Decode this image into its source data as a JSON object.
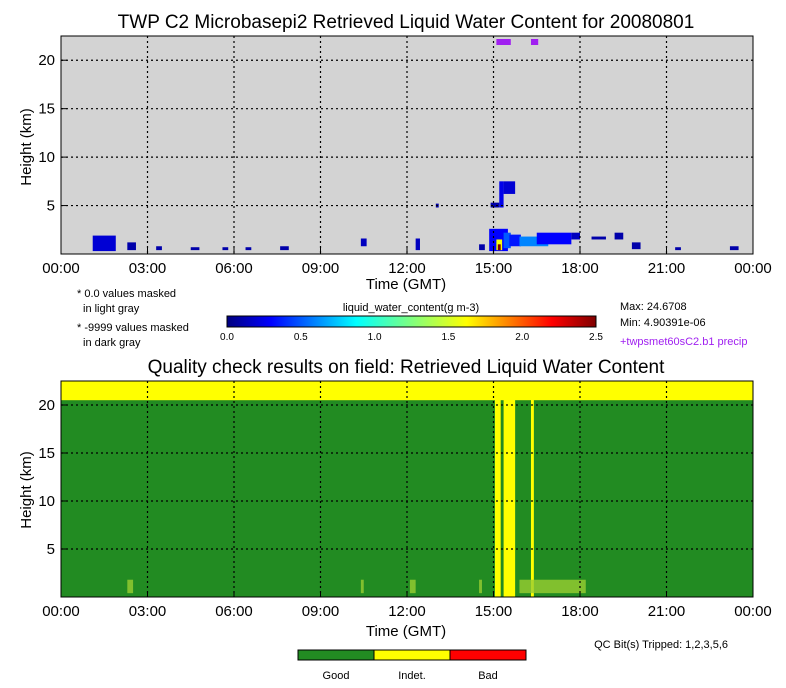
{
  "chart_data": [
    {
      "type": "heatmap",
      "title": "TWP C2 Microbasepi2 Retrieved Liquid Water Content for 20080801",
      "xlabel": "Time (GMT)",
      "ylabel": "Height (km)",
      "xticks": [
        "00:00",
        "03:00",
        "06:00",
        "09:00",
        "12:00",
        "15:00",
        "18:00",
        "21:00",
        "00:00"
      ],
      "xlim_hours": [
        0,
        24
      ],
      "yticks": [
        5,
        10,
        15,
        20
      ],
      "ylim": [
        0,
        22.5
      ],
      "grid": true,
      "background_color": "#d3d3d3",
      "notes": [
        "* 0.0 values masked",
        "in light gray",
        "* -9999 values masked",
        "in dark gray"
      ],
      "colorbar": {
        "label": "liquid_water_content(g m-3)",
        "ticks": [
          "0.0",
          "0.5",
          "1.0",
          "1.5",
          "2.0",
          "2.5"
        ],
        "range": [
          0,
          2.5
        ]
      },
      "stats": {
        "max": "Max: 24.6708",
        "min": "Min: 4.90391e-06"
      },
      "precip_label": "+twpsmet60sC2.b1 precip",
      "precip_color": "#a020f0",
      "precip_periods_hours": [
        [
          15.1,
          15.6
        ],
        [
          16.3,
          16.55
        ]
      ],
      "cloud_features": [
        {
          "t0": 1.1,
          "t1": 1.9,
          "z0": 0.3,
          "z1": 1.9,
          "level": 0.2
        },
        {
          "t0": 2.3,
          "t1": 2.6,
          "z0": 0.4,
          "z1": 1.2,
          "level": 0.1
        },
        {
          "t0": 3.3,
          "t1": 3.5,
          "z0": 0.4,
          "z1": 0.8,
          "level": 0.1
        },
        {
          "t0": 4.5,
          "t1": 4.8,
          "z0": 0.4,
          "z1": 0.7,
          "level": 0.1
        },
        {
          "t0": 5.6,
          "t1": 5.8,
          "z0": 0.4,
          "z1": 0.7,
          "level": 0.1
        },
        {
          "t0": 6.4,
          "t1": 6.6,
          "z0": 0.4,
          "z1": 0.7,
          "level": 0.1
        },
        {
          "t0": 7.6,
          "t1": 7.9,
          "z0": 0.4,
          "z1": 0.8,
          "level": 0.1
        },
        {
          "t0": 10.4,
          "t1": 10.6,
          "z0": 0.8,
          "z1": 1.6,
          "level": 0.15
        },
        {
          "t0": 12.3,
          "t1": 12.45,
          "z0": 0.4,
          "z1": 1.6,
          "level": 0.15
        },
        {
          "t0": 13.0,
          "t1": 13.1,
          "z0": 4.8,
          "z1": 5.2,
          "level": 0.1
        },
        {
          "t0": 14.5,
          "t1": 14.7,
          "z0": 0.4,
          "z1": 1.0,
          "level": 0.1
        },
        {
          "t0": 14.85,
          "t1": 15.5,
          "z0": 0.3,
          "z1": 2.6,
          "level": 0.3
        },
        {
          "t0": 15.1,
          "t1": 15.3,
          "z0": 0.4,
          "z1": 1.5,
          "level": 1.6
        },
        {
          "t0": 15.15,
          "t1": 15.25,
          "z0": 0.4,
          "z1": 1.0,
          "level": 2.5
        },
        {
          "t0": 15.35,
          "t1": 15.6,
          "z0": 0.6,
          "z1": 2.2,
          "level": 0.5
        },
        {
          "t0": 15.55,
          "t1": 15.95,
          "z0": 0.8,
          "z1": 2.0,
          "level": 0.35
        },
        {
          "t0": 15.9,
          "t1": 16.9,
          "z0": 0.8,
          "z1": 1.8,
          "level": 0.6
        },
        {
          "t0": 16.5,
          "t1": 17.7,
          "z0": 1.0,
          "z1": 2.2,
          "level": 0.3
        },
        {
          "t0": 17.7,
          "t1": 18.0,
          "z0": 1.5,
          "z1": 2.2,
          "level": 0.15
        },
        {
          "t0": 15.2,
          "t1": 15.35,
          "z0": 4.8,
          "z1": 7.5,
          "level": 0.25
        },
        {
          "t0": 15.35,
          "t1": 15.75,
          "z0": 6.2,
          "z1": 7.5,
          "level": 0.2
        },
        {
          "t0": 14.9,
          "t1": 15.2,
          "z0": 4.8,
          "z1": 5.3,
          "level": 0.1
        },
        {
          "t0": 18.4,
          "t1": 18.9,
          "z0": 1.5,
          "z1": 1.8,
          "level": 0.1
        },
        {
          "t0": 19.2,
          "t1": 19.5,
          "z0": 1.5,
          "z1": 2.2,
          "level": 0.1
        },
        {
          "t0": 19.8,
          "t1": 20.1,
          "z0": 0.5,
          "z1": 1.2,
          "level": 0.1
        },
        {
          "t0": 21.3,
          "t1": 21.5,
          "z0": 0.4,
          "z1": 0.7,
          "level": 0.1
        },
        {
          "t0": 23.2,
          "t1": 23.5,
          "z0": 0.4,
          "z1": 0.8,
          "level": 0.1
        }
      ]
    },
    {
      "type": "heatmap",
      "title": "Quality check results on field: Retrieved Liquid Water Content",
      "xlabel": "Time (GMT)",
      "ylabel": "Height (km)",
      "xticks": [
        "00:00",
        "03:00",
        "06:00",
        "09:00",
        "12:00",
        "15:00",
        "18:00",
        "21:00",
        "00:00"
      ],
      "xlim_hours": [
        0,
        24
      ],
      "yticks": [
        5,
        10,
        15,
        20
      ],
      "ylim": [
        0,
        22.5
      ],
      "grid": true,
      "qc_bits": "QC Bit(s) Tripped: 1,2,3,5,6",
      "legend": [
        {
          "label": "Good",
          "color": "#228b22"
        },
        {
          "label": "Indet.",
          "color": "#ffff00"
        },
        {
          "label": "Bad",
          "color": "#ff0000"
        }
      ],
      "indeterminate_top_km": [
        20.5,
        22.5
      ],
      "indeterminate_columns_hours": [
        [
          15.05,
          15.25
        ],
        [
          15.35,
          15.75
        ],
        [
          16.3,
          16.4
        ]
      ],
      "indeterminate_specks_hours": [
        [
          12.1,
          12.3
        ],
        [
          15.9,
          18.2
        ],
        [
          2.3,
          2.5
        ],
        [
          10.4,
          10.5
        ],
        [
          14.5,
          14.6
        ]
      ]
    }
  ]
}
